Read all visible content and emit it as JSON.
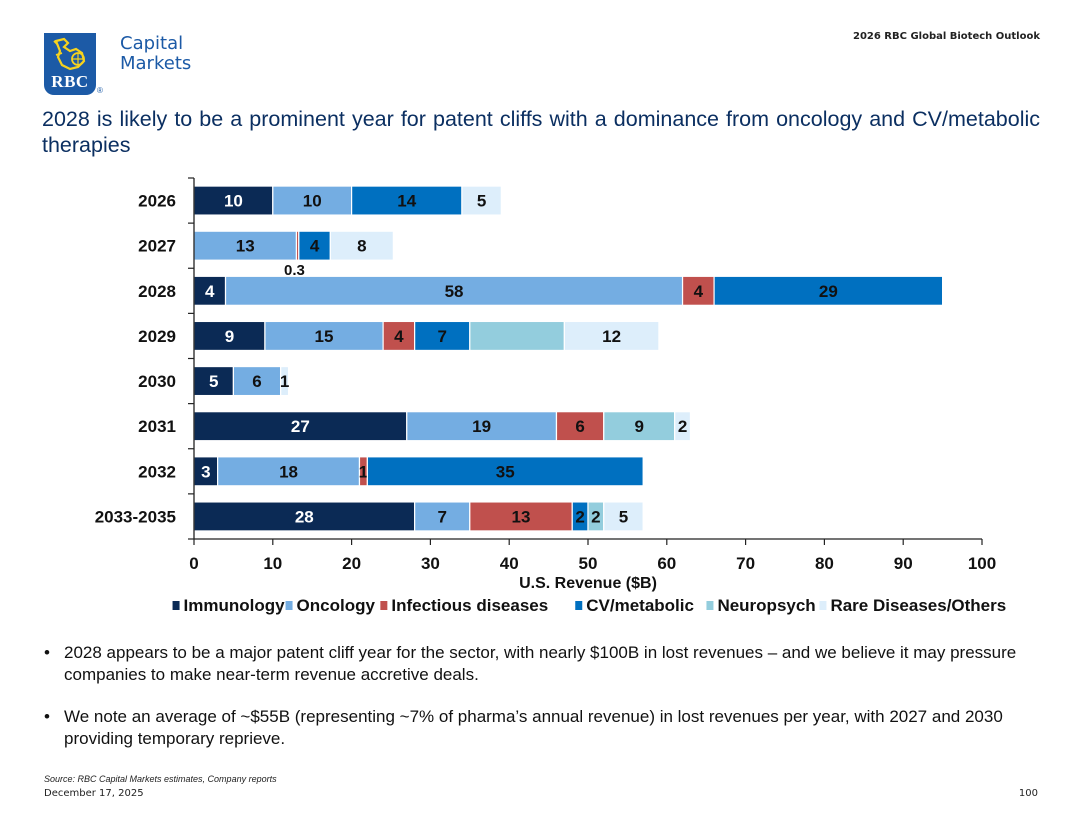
{
  "header": {
    "brand_line1": "Capital",
    "brand_line2": "Markets",
    "logo_text": "RBC",
    "registered_mark": "®",
    "doc_title": "2026 RBC Global Biotech Outlook"
  },
  "headline": "2028 is likely to be a prominent year for patent cliffs with a dominance from oncology and CV/metabolic therapies",
  "bullets": [
    "2028 appears to be a major patent cliff year for the sector, with nearly $100B in lost revenues – and we believe it may pressure companies to make near-term revenue accretive deals.",
    "We note an average of ~$55B (representing ~7% of pharma’s annual revenue) in lost revenues per year, with 2027 and 2030 providing temporary reprieve."
  ],
  "bullet_glyph": "•",
  "footer": {
    "source": "Source: RBC Capital Markets estimates, Company reports",
    "date": "December 17, 2025",
    "page_number": "100"
  },
  "chart_data": {
    "type": "bar",
    "orientation": "horizontal",
    "stacked": true,
    "title": "",
    "xlabel": "U.S. Revenue ($B)",
    "ylabel": "",
    "xlim": [
      0,
      100
    ],
    "xticks": [
      0,
      10,
      20,
      30,
      40,
      50,
      60,
      70,
      80,
      90,
      100
    ],
    "grid": false,
    "legend_position": "bottom",
    "categories": [
      "2026",
      "2027",
      "2028",
      "2029",
      "2030",
      "2031",
      "2032",
      "2033-2035"
    ],
    "series": [
      {
        "name": "Immunology",
        "color": "#0b2a55",
        "label_color": "#ffffff",
        "values": [
          10,
          0,
          4,
          9,
          5,
          27,
          3,
          28
        ],
        "labels": [
          "10",
          "",
          "4",
          "9",
          "5",
          "27",
          "3",
          "28"
        ]
      },
      {
        "name": "Oncology",
        "color": "#74ade2",
        "label_color": "#111111",
        "values": [
          10,
          13,
          58,
          15,
          6,
          19,
          18,
          7
        ],
        "labels": [
          "10",
          "13",
          "58",
          "15",
          "6",
          "19",
          "18",
          "7"
        ]
      },
      {
        "name": "Infectious diseases",
        "color": "#c0504d",
        "label_color": "#111111",
        "values": [
          0,
          0.3,
          4,
          4,
          0,
          6,
          1,
          13
        ],
        "labels": [
          "",
          "0.3",
          "4",
          "4",
          "",
          "6",
          "1",
          "13"
        ]
      },
      {
        "name": "CV/metabolic",
        "color": "#0070c0",
        "label_color": "#111111",
        "values": [
          14,
          4,
          29,
          7,
          0,
          0,
          35,
          2
        ],
        "labels": [
          "14",
          "4",
          "29",
          "7",
          "",
          "",
          "35",
          "2"
        ]
      },
      {
        "name": "Neuropsych",
        "color": "#93cddd",
        "label_color": "#111111",
        "values": [
          0,
          0,
          0,
          12,
          0,
          9,
          0,
          2
        ],
        "labels": [
          "",
          "",
          "",
          "",
          "",
          "9",
          "",
          "2"
        ]
      },
      {
        "name": "Rare Diseases/Others",
        "color": "#ddeefb",
        "label_color": "#111111",
        "values": [
          5,
          8,
          0,
          12,
          1,
          2,
          0,
          5
        ],
        "labels": [
          "5",
          "8",
          "",
          "12",
          "1",
          "2",
          "",
          "5"
        ]
      }
    ],
    "annotations": [
      {
        "category": "2027",
        "series": "Infectious diseases",
        "text": "0.3",
        "placement": "below-bar"
      }
    ]
  }
}
